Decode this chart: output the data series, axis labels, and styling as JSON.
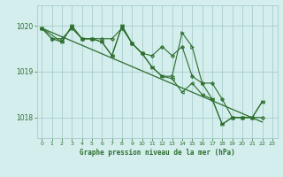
{
  "background_color": "#d4eeed",
  "grid_color": "#a8cccc",
  "line_color": "#2d6e2d",
  "marker_color": "#2d6e2d",
  "text_color": "#2d6e2d",
  "xlabel": "Graphe pression niveau de la mer (hPa)",
  "xlim": [
    -0.5,
    23.5
  ],
  "ylim": [
    1017.55,
    1020.45
  ],
  "yticks": [
    1018,
    1019,
    1020
  ],
  "xticks": [
    0,
    1,
    2,
    3,
    4,
    5,
    6,
    7,
    8,
    9,
    10,
    11,
    12,
    13,
    14,
    15,
    16,
    17,
    18,
    19,
    20,
    21,
    22,
    23
  ],
  "series": [
    {
      "x": [
        0,
        22
      ],
      "y": [
        1019.95,
        1017.9
      ],
      "marker": null,
      "lw": 0.9
    },
    {
      "x": [
        0,
        1,
        2,
        3,
        4,
        5,
        6,
        7,
        8,
        9,
        10,
        11,
        12,
        13,
        14,
        15,
        16,
        17,
        18,
        19,
        20,
        21,
        22
      ],
      "y": [
        1019.95,
        1019.72,
        1019.72,
        1019.95,
        1019.72,
        1019.72,
        1019.72,
        1019.72,
        1019.95,
        1019.62,
        1019.4,
        1019.35,
        1019.55,
        1019.35,
        1019.55,
        1018.9,
        1018.75,
        1018.75,
        1018.4,
        1018.0,
        1018.0,
        1018.0,
        1018.0
      ],
      "marker": "P",
      "lw": 0.8
    },
    {
      "x": [
        0,
        1,
        2,
        3,
        4,
        5,
        6,
        7,
        8,
        9,
        10,
        11,
        12,
        13,
        14,
        15,
        16,
        17,
        18,
        19,
        20,
        21,
        22
      ],
      "y": [
        1019.95,
        1019.72,
        1019.65,
        1020.0,
        1019.72,
        1019.72,
        1019.65,
        1019.35,
        1020.0,
        1019.62,
        1019.4,
        1019.1,
        1018.9,
        1018.9,
        1019.85,
        1019.55,
        1018.75,
        1018.4,
        1017.85,
        1018.0,
        1018.0,
        1018.0,
        1018.35
      ],
      "marker": ">",
      "lw": 0.8
    },
    {
      "x": [
        0,
        2,
        3,
        4,
        5,
        6,
        7,
        8,
        9,
        10,
        11,
        12,
        13,
        14,
        15,
        16,
        17,
        18,
        19,
        20,
        21,
        22
      ],
      "y": [
        1019.95,
        1019.65,
        1020.0,
        1019.72,
        1019.72,
        1019.65,
        1019.35,
        1020.0,
        1019.62,
        1019.4,
        1019.1,
        1018.9,
        1018.85,
        1018.55,
        1018.75,
        1018.5,
        1018.4,
        1017.85,
        1018.0,
        1018.0,
        1018.0,
        1018.35
      ],
      "marker": "<",
      "lw": 0.8
    }
  ]
}
